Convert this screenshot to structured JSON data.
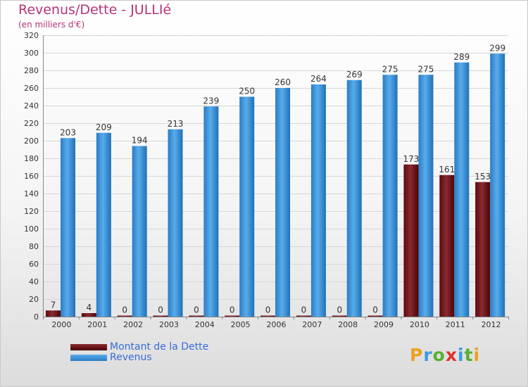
{
  "chart_data": {
    "type": "bar",
    "title": "Revenus/Dette - JULLIé",
    "subtitle": "(en milliers d'€)",
    "categories": [
      "2000",
      "2001",
      "2002",
      "2003",
      "2004",
      "2005",
      "2006",
      "2007",
      "2008",
      "2009",
      "2010",
      "2011",
      "2012"
    ],
    "series": [
      {
        "name": "Montant de la Dette",
        "color": "#6b0f14",
        "values": [
          7,
          4,
          0,
          0,
          0,
          0,
          0,
          0,
          0,
          0,
          173,
          161,
          153
        ]
      },
      {
        "name": "Revenus",
        "color": "#3a8fd6",
        "values": [
          203,
          209,
          194,
          213,
          239,
          250,
          260,
          264,
          269,
          275,
          275,
          289,
          299
        ]
      }
    ],
    "ylim": [
      0,
      320
    ],
    "yticks": [
      0,
      20,
      40,
      60,
      80,
      100,
      120,
      140,
      160,
      180,
      200,
      220,
      240,
      260,
      280,
      300,
      320
    ],
    "grid": true
  },
  "legend": {
    "debt_label": "Montant de la Dette",
    "revenue_label": "Revenus"
  },
  "logo": {
    "text": "Proxiti",
    "p": "P",
    "r": "r",
    "o": "o",
    "x": "x",
    "i": "i",
    "t": "t",
    "i2": "i"
  }
}
